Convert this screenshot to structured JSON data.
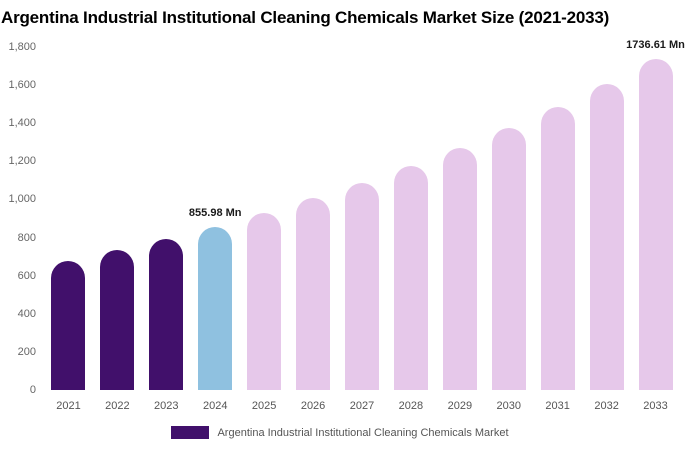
{
  "chart_data": {
    "type": "bar",
    "title": "Argentina Industrial Institutional Cleaning Chemicals Market Size (2021-2033)",
    "categories": [
      "2021",
      "2022",
      "2023",
      "2024",
      "2025",
      "2026",
      "2027",
      "2028",
      "2029",
      "2030",
      "2031",
      "2032",
      "2033"
    ],
    "values": [
      675,
      735,
      790,
      855.98,
      930,
      1010,
      1085,
      1175,
      1270,
      1375,
      1485,
      1605,
      1736.61
    ],
    "bar_colors": [
      "#41106b",
      "#41106b",
      "#41106b",
      "#8fc1e0",
      "#e6c8ea",
      "#e6c8ea",
      "#e6c8ea",
      "#e6c8ea",
      "#e6c8ea",
      "#e6c8ea",
      "#e6c8ea",
      "#e6c8ea",
      "#e6c8ea"
    ],
    "data_labels": [
      "",
      "",
      "",
      "855.98 Mn",
      "",
      "",
      "",
      "",
      "",
      "",
      "",
      "",
      "1736.61 Mn"
    ],
    "xlabel": "",
    "ylabel": "",
    "ylim": [
      0,
      1800
    ],
    "ytick_values": [
      0,
      200,
      400,
      600,
      800,
      1000,
      1200,
      1400,
      1600,
      1800
    ],
    "ytick_labels": [
      "0",
      "200",
      "400",
      "600",
      "800",
      "1,000",
      "1,200",
      "1,400",
      "1,600",
      "1,800"
    ],
    "grid": false,
    "legend": {
      "position": "bottom",
      "label": "Argentina Industrial Institutional Cleaning Chemicals Market",
      "swatch_color": "#41106b"
    },
    "colors": {
      "historical": "#41106b",
      "current_year": "#8fc1e0",
      "forecast": "#e6c8ea"
    }
  }
}
